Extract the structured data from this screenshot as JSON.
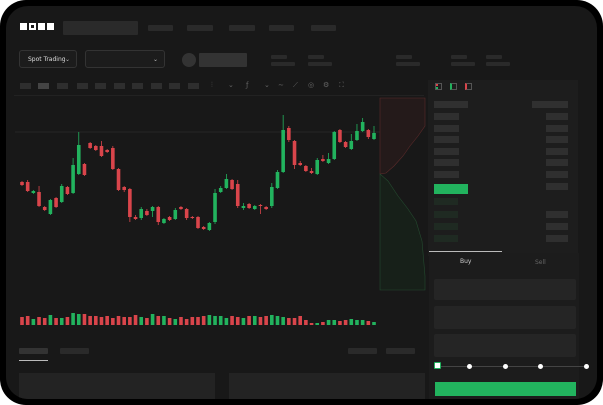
{
  "brand": {
    "logo_text": "OKX"
  },
  "header": {
    "trade_mode": "Spot Trading",
    "pair_select": ""
  },
  "trade_panel": {
    "buy_tab": "Buy",
    "sell_tab": "Sell",
    "leverage_slider_percent": 0
  },
  "colors": {
    "up": "#22b35e",
    "down": "#d9454b",
    "background": "#181818",
    "primary_button": "#22b35e"
  },
  "toolbar_icons": [
    "candle-type-icon",
    "indicator-icon",
    "line-tool-icon",
    "ruler-icon",
    "camera-icon",
    "settings-icon",
    "fullscreen-icon"
  ],
  "chart_data": {
    "type": "candlestick",
    "title": "",
    "ohlc": [
      [
        118,
        119,
        114,
        115
      ],
      [
        118,
        120,
        108,
        109
      ],
      [
        107,
        110,
        106,
        109
      ],
      [
        108,
        114,
        93,
        94
      ],
      [
        93,
        94,
        89,
        90
      ],
      [
        86,
        101,
        85,
        100
      ],
      [
        102,
        103,
        92,
        93
      ],
      [
        98,
        116,
        97,
        114
      ],
      [
        113,
        114,
        105,
        106
      ],
      [
        107,
        142,
        106,
        135
      ],
      [
        126,
        168,
        125,
        155
      ],
      [
        136,
        137,
        124,
        125
      ],
      [
        157,
        158,
        151,
        152
      ],
      [
        154,
        155,
        149,
        150
      ],
      [
        154,
        159,
        143,
        144
      ],
      [
        150,
        151,
        147,
        148
      ],
      [
        152,
        154,
        130,
        131
      ],
      [
        131,
        132,
        109,
        110
      ],
      [
        113,
        114,
        108,
        110
      ],
      [
        111,
        112,
        78,
        83
      ],
      [
        83,
        85,
        80,
        81
      ],
      [
        82,
        93,
        80,
        91
      ],
      [
        89,
        91,
        84,
        85
      ],
      [
        89,
        94,
        83,
        93
      ],
      [
        93,
        94,
        75,
        78
      ],
      [
        77,
        82,
        76,
        81
      ],
      [
        83,
        84,
        79,
        80
      ],
      [
        81,
        92,
        80,
        90
      ],
      [
        93,
        94,
        90,
        91
      ],
      [
        91,
        92,
        80,
        82
      ],
      [
        83,
        84,
        81,
        82
      ],
      [
        83,
        84,
        71,
        72
      ],
      [
        73,
        74,
        70,
        71
      ],
      [
        70,
        78,
        69,
        77
      ],
      [
        78,
        111,
        76,
        107
      ],
      [
        108,
        114,
        107,
        112
      ],
      [
        112,
        126,
        111,
        121
      ],
      [
        120,
        121,
        110,
        111
      ],
      [
        116,
        120,
        92,
        94
      ],
      [
        92,
        97,
        90,
        94
      ],
      [
        96,
        97,
        91,
        92
      ],
      [
        91,
        95,
        90,
        94
      ],
      [
        95,
        96,
        86,
        94
      ],
      [
        93,
        94,
        90,
        91
      ],
      [
        94,
        117,
        92,
        113
      ],
      [
        112,
        130,
        111,
        128
      ],
      [
        128,
        185,
        127,
        170
      ],
      [
        172,
        174,
        158,
        160
      ],
      [
        159,
        160,
        131,
        135
      ],
      [
        137,
        139,
        134,
        135
      ],
      [
        134,
        135,
        128,
        129
      ],
      [
        129,
        132,
        126,
        127
      ],
      [
        126,
        142,
        125,
        140
      ],
      [
        141,
        145,
        138,
        139
      ],
      [
        137,
        147,
        136,
        141
      ],
      [
        141,
        169,
        140,
        168
      ],
      [
        170,
        171,
        157,
        158
      ],
      [
        158,
        159,
        152,
        153
      ],
      [
        151,
        166,
        150,
        159
      ],
      [
        160,
        176,
        159,
        169
      ],
      [
        169,
        182,
        168,
        178
      ],
      [
        170,
        171,
        161,
        163
      ],
      [
        161,
        174,
        160,
        167
      ]
    ],
    "volume": [
      8,
      9,
      6,
      8,
      7,
      10,
      7,
      7,
      8,
      12,
      11,
      11,
      9,
      9,
      8,
      9,
      7,
      9,
      8,
      8,
      10,
      8,
      7,
      11,
      9,
      9,
      7,
      6,
      8,
      6,
      8,
      8,
      9,
      10,
      9,
      9,
      7,
      9,
      8,
      7,
      9,
      9,
      8,
      9,
      10,
      9,
      8,
      7,
      7,
      9,
      5,
      2,
      2,
      3,
      5,
      5,
      4,
      5,
      6,
      5,
      5,
      4,
      3
    ]
  }
}
